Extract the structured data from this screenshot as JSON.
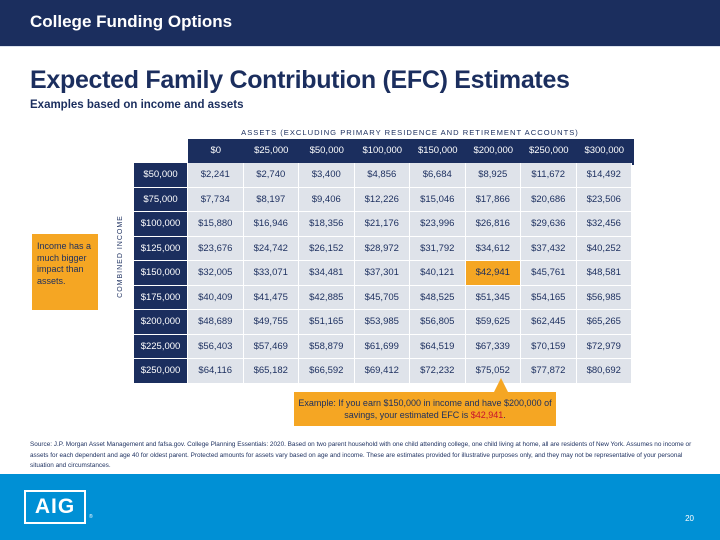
{
  "header": {
    "title": "College Funding Options"
  },
  "page": {
    "title": "Expected Family Contribution (EFC) Estimates",
    "subtitle": "Examples based on income and assets"
  },
  "table": {
    "assets_label": "ASSETS (EXCLUDING PRIMARY RESIDENCE AND RETIREMENT ACCOUNTS)",
    "income_label": "COMBINED INCOME",
    "columns": [
      "$0",
      "$25,000",
      "$50,000",
      "$100,000",
      "$150,000",
      "$200,000",
      "$250,000",
      "$300,000"
    ],
    "rows": [
      {
        "income": "$50,000",
        "values": [
          "$2,241",
          "$2,740",
          "$3,400",
          "$4,856",
          "$6,684",
          "$8,925",
          "$11,672",
          "$14,492"
        ]
      },
      {
        "income": "$75,000",
        "values": [
          "$7,734",
          "$8,197",
          "$9,406",
          "$12,226",
          "$15,046",
          "$17,866",
          "$20,686",
          "$23,506"
        ]
      },
      {
        "income": "$100,000",
        "values": [
          "$15,880",
          "$16,946",
          "$18,356",
          "$21,176",
          "$23,996",
          "$26,816",
          "$29,636",
          "$32,456"
        ]
      },
      {
        "income": "$125,000",
        "values": [
          "$23,676",
          "$24,742",
          "$26,152",
          "$28,972",
          "$31,792",
          "$34,612",
          "$37,432",
          "$40,252"
        ]
      },
      {
        "income": "$150,000",
        "values": [
          "$32,005",
          "$33,071",
          "$34,481",
          "$37,301",
          "$40,121",
          "$42,941",
          "$45,761",
          "$48,581"
        ]
      },
      {
        "income": "$175,000",
        "values": [
          "$40,409",
          "$41,475",
          "$42,885",
          "$45,705",
          "$48,525",
          "$51,345",
          "$54,165",
          "$56,985"
        ]
      },
      {
        "income": "$200,000",
        "values": [
          "$48,689",
          "$49,755",
          "$51,165",
          "$53,985",
          "$56,805",
          "$59,625",
          "$62,445",
          "$65,265"
        ]
      },
      {
        "income": "$225,000",
        "values": [
          "$56,403",
          "$57,469",
          "$58,879",
          "$61,699",
          "$64,519",
          "$67,339",
          "$70,159",
          "$72,979"
        ]
      },
      {
        "income": "$250,000",
        "values": [
          "$64,116",
          "$65,182",
          "$66,592",
          "$69,412",
          "$72,232",
          "$75,052",
          "$77,872",
          "$80,692"
        ]
      }
    ],
    "highlight": {
      "row": 4,
      "col": 5
    }
  },
  "note": {
    "text": "Income has a much bigger impact than assets."
  },
  "example": {
    "text_before": "Example: If you earn $150,000 in income and have $200,000 of savings, your estimated EFC is ",
    "amount": "$42,941",
    "text_after": "."
  },
  "source": {
    "text": "Source: J.P. Morgan Asset Management and fafsa.gov. College Planning Essentials: 2020. Based on two parent household with one child attending college, one child living at home, all are residents of New York. Assumes no income or assets for each dependent and age 40 for oldest parent. Protected amounts for assets vary based on age and income. These are estimates provided for illustrative purposes only, and they may not be representative of your personal situation and circumstances."
  },
  "footer": {
    "logo_text": "AIG",
    "logo_mark": "®",
    "page_number": "20"
  },
  "colors": {
    "navy": "#1b2e5e",
    "orange": "#f5a623",
    "cell_gray": "#dfe3ea",
    "footer_blue": "#0090d5",
    "emphasis_red": "#c8102e"
  }
}
